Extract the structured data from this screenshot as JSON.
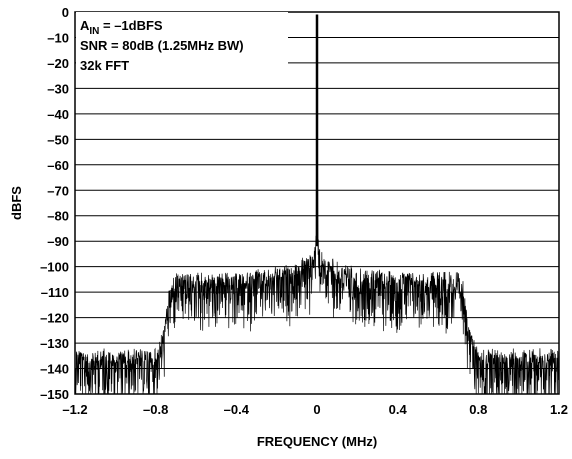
{
  "chart_data": {
    "type": "line",
    "title": "",
    "xlabel": "FREQUENCY (MHz)",
    "ylabel": "dBFS",
    "xlim": [
      -1.2,
      1.2
    ],
    "ylim": [
      -150,
      0
    ],
    "xticks": [
      -1.2,
      -0.8,
      -0.4,
      0,
      0.4,
      0.8,
      1.2
    ],
    "xtick_labels": [
      "–1.2",
      "–0.8",
      "–0.4",
      "0",
      "0.4",
      "0.8",
      "1.2"
    ],
    "yticks": [
      0,
      -10,
      -20,
      -30,
      -40,
      -50,
      -60,
      -70,
      -80,
      -90,
      -100,
      -110,
      -120,
      -130,
      -140,
      -150
    ],
    "ytick_labels": [
      "0",
      "–10",
      "–20",
      "–30",
      "–40",
      "–50",
      "–60",
      "–70",
      "–80",
      "–90",
      "–100",
      "–110",
      "–120",
      "–130",
      "–140",
      "–150"
    ],
    "grid": "horizontal",
    "annotations": {
      "line1_main": "A",
      "line1_sub": "IN",
      "line1_rest": " = –1dBFS",
      "line2": "SNR = 80dB (1.25MHz BW)",
      "line3": "32k FFT"
    },
    "series": [
      {
        "color": "#000000",
        "x": [
          -1.2,
          -1.0,
          -0.8,
          -0.76,
          -0.73,
          -0.7,
          -0.4,
          -0.2,
          -0.1,
          -0.02,
          -0.005,
          0,
          0.005,
          0.02,
          0.1,
          0.2,
          0.4,
          0.7,
          0.73,
          0.76,
          0.8,
          1.0,
          1.2
        ],
        "y": [
          -138,
          -138,
          -138,
          -130,
          -112,
          -108,
          -108,
          -106,
          -104,
          -99,
          -92,
          -1,
          -92,
          -99,
          -104,
          -106,
          -108,
          -108,
          -112,
          -130,
          -138,
          -138,
          -138
        ]
      }
    ]
  }
}
